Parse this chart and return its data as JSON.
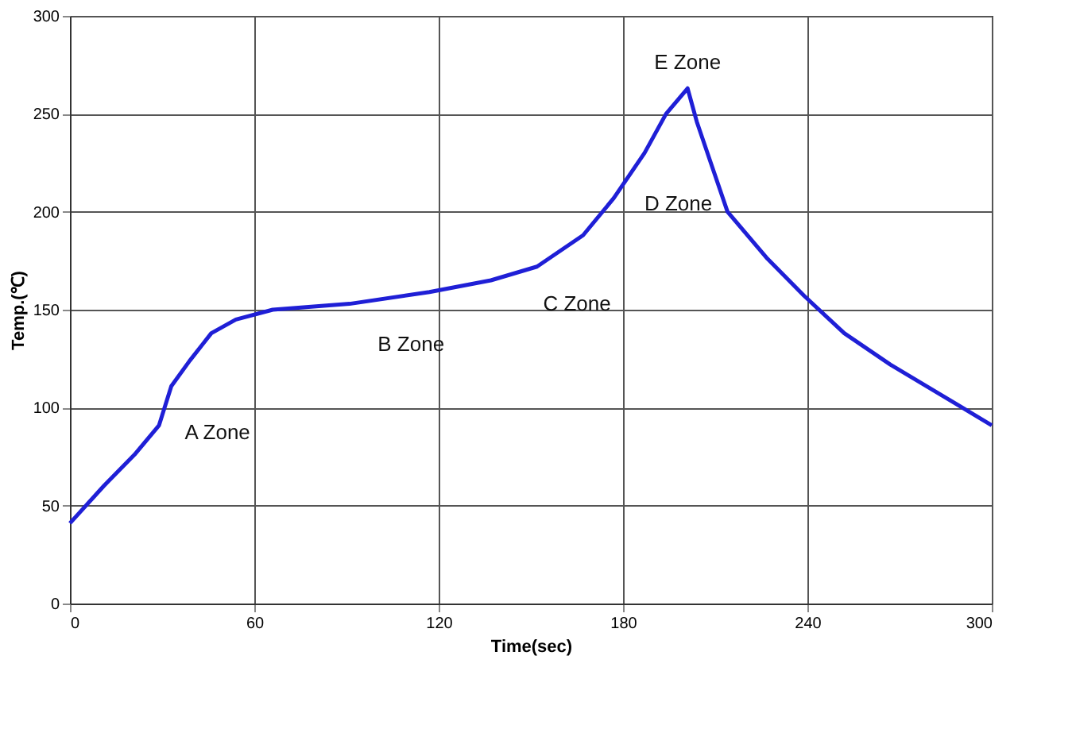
{
  "chart_data": {
    "type": "line",
    "xlabel": "Time(sec)",
    "ylabel": "Temp.(℃)",
    "x": [
      0,
      11,
      21,
      29,
      33,
      39,
      46,
      54,
      66,
      91,
      117,
      137,
      152,
      167,
      177,
      187,
      194,
      201,
      204,
      209,
      214,
      227,
      239,
      252,
      267,
      283,
      300
    ],
    "series": [
      {
        "color": "#1f1fd6",
        "values": [
          41,
          60,
          76,
          91,
          111,
          124,
          138,
          145,
          150,
          153,
          159,
          165,
          172,
          188,
          207,
          230,
          250,
          263,
          246,
          223,
          200,
          176,
          157,
          138,
          122,
          107,
          91
        ]
      }
    ],
    "xlim": [
      0,
      300
    ],
    "xticks": [
      0,
      60,
      120,
      180,
      240,
      300
    ],
    "ylim": [
      0,
      300
    ],
    "yticks": [
      0,
      50,
      100,
      150,
      200,
      250,
      300
    ],
    "grid": true,
    "marker": "none",
    "line_style": "solid",
    "annotations": [
      "A Zone",
      "B Zone",
      "C Zone",
      "D Zone",
      "E Zone"
    ]
  }
}
